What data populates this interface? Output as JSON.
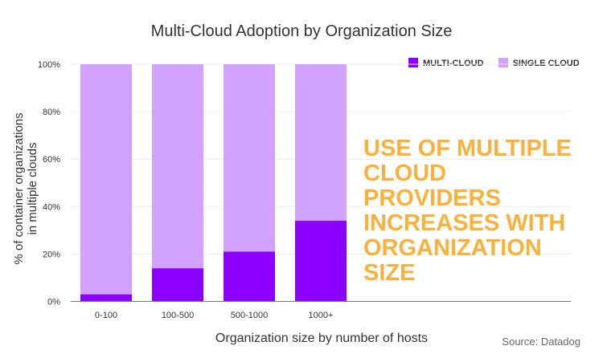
{
  "chart_data": {
    "type": "bar",
    "stacked": true,
    "title": "Multi-Cloud Adoption by Organization Size",
    "xlabel": "Organization size by number of hosts",
    "ylabel": "% of container organizations in multiple clouds",
    "categories": [
      "0-100",
      "100-500",
      "500-1000",
      "1000+"
    ],
    "series": [
      {
        "name": "MULTI-CLOUD",
        "values": [
          3,
          14,
          21,
          34
        ],
        "color": "#8c00ff"
      },
      {
        "name": "SINGLE CLOUD",
        "values": [
          97,
          86,
          79,
          66
        ],
        "color": "#d1a3ff"
      }
    ],
    "ylim": [
      0,
      100
    ],
    "yticks": [
      "0%",
      "20%",
      "40%",
      "60%",
      "80%",
      "100%"
    ],
    "grid": true,
    "legend_position": "top-right",
    "annotation": "USE OF MULTIPLE CLOUD PROVIDERS INCREASES WITH ORGANIZATION SIZE",
    "annotation_color": "#fbb03b",
    "source": "Source: Datadog"
  }
}
